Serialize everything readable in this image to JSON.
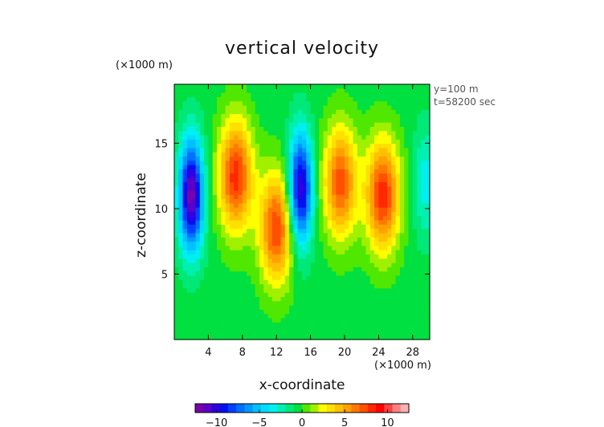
{
  "chart_data": {
    "type": "heatmap",
    "title": "vertical velocity",
    "xlabel": "x-coordinate",
    "ylabel": "z-coordinate",
    "x_unit": "(×1000 m)",
    "y_unit": "(×1000 m)",
    "annotations": [
      "y=100 m",
      "t=58200 sec"
    ],
    "xlim": [
      0,
      30
    ],
    "ylim": [
      0,
      19.5
    ],
    "x_ticks": [
      4,
      8,
      12,
      16,
      20,
      24,
      28
    ],
    "y_ticks": [
      5,
      10,
      15
    ],
    "colorbar": {
      "range": [
        -12.5,
        12.5
      ],
      "step": 1,
      "ticks": [
        -10,
        -5,
        0,
        5,
        10
      ],
      "colors": [
        "#7a00a8",
        "#5a00c8",
        "#3000e0",
        "#0010f0",
        "#0040ff",
        "#0070ff",
        "#0098ff",
        "#00c0ff",
        "#00dcff",
        "#00f0f0",
        "#00f0b0",
        "#00e878",
        "#00e040",
        "#50e800",
        "#a0f000",
        "#ffff00",
        "#ffe000",
        "#ffc000",
        "#ffa000",
        "#ff7800",
        "#ff5000",
        "#ff2800",
        "#ff0000",
        "#ff4040",
        "#ff8080",
        "#ffb0b0"
      ]
    },
    "features": [
      {
        "kind": "downdraft",
        "x": 2.0,
        "z": 11.0,
        "peak": -12.0
      },
      {
        "kind": "updraft",
        "x": 7.2,
        "z": 12.5,
        "peak": 9.0
      },
      {
        "kind": "updraft",
        "x": 12.0,
        "z": 8.5,
        "peak": 8.5
      },
      {
        "kind": "downdraft",
        "x": 14.8,
        "z": 11.5,
        "peak": -11.0
      },
      {
        "kind": "updraft",
        "x": 19.5,
        "z": 12.0,
        "peak": 8.0
      },
      {
        "kind": "updraft",
        "x": 24.5,
        "z": 11.0,
        "peak": 9.0
      },
      {
        "kind": "downdraft",
        "x": 29.5,
        "z": 12.0,
        "peak": -3.0
      }
    ]
  }
}
